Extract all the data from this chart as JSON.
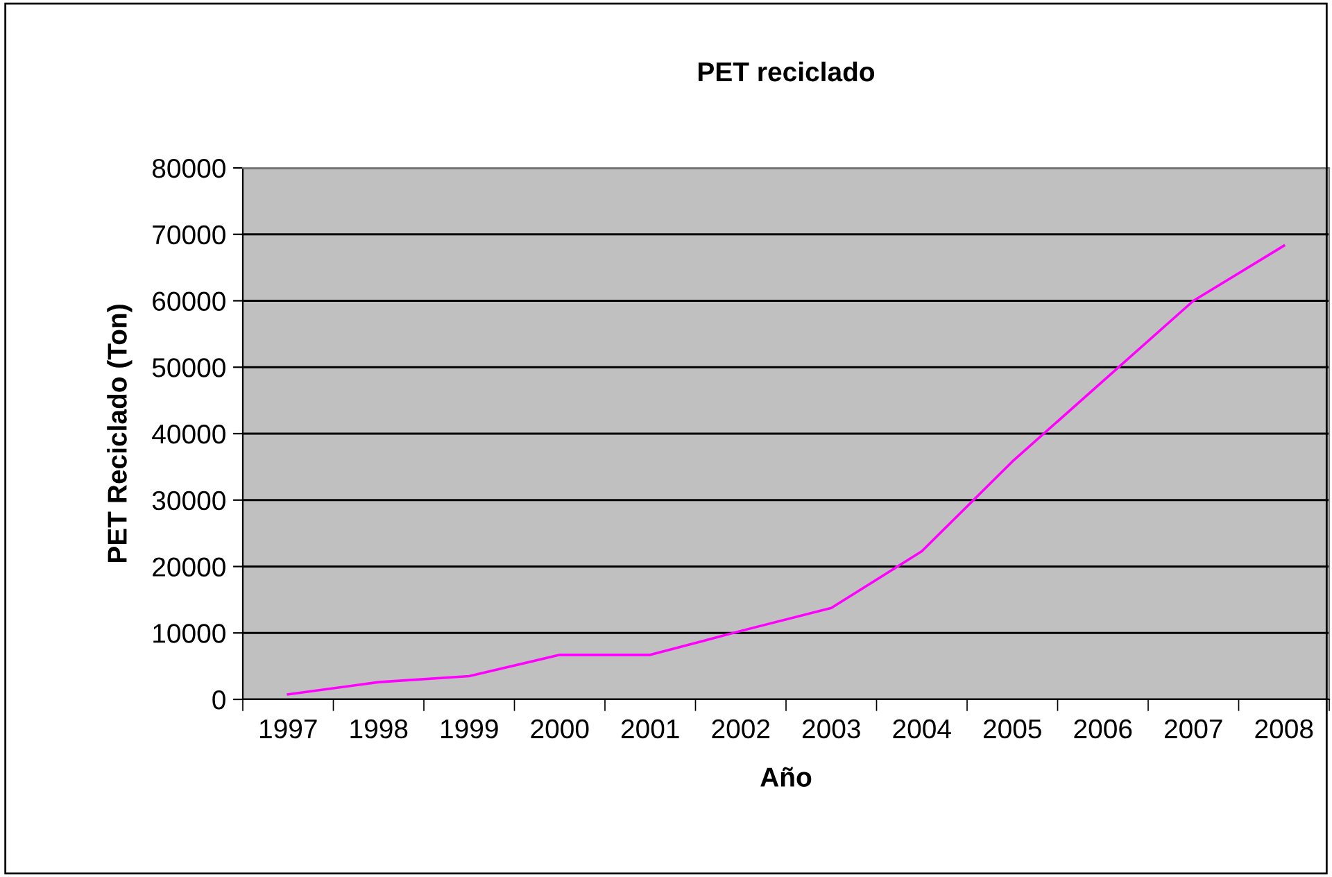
{
  "chart_data": {
    "type": "line",
    "title": "PET reciclado",
    "xlabel": "Año",
    "ylabel": "PET Reciclado (Ton)",
    "categories": [
      "1997",
      "1998",
      "1999",
      "2000",
      "2001",
      "2002",
      "2003",
      "2004",
      "2005",
      "2006",
      "2007",
      "2008"
    ],
    "series": [
      {
        "color": "#ff00ff",
        "values": [
          750,
          2600,
          3500,
          6700,
          6700,
          10300,
          13750,
          22300,
          35800,
          47900,
          60000,
          68300
        ]
      }
    ],
    "ylim": [
      0,
      80000
    ],
    "yticks": [
      0,
      10000,
      20000,
      30000,
      40000,
      50000,
      60000,
      70000,
      80000
    ],
    "grid": "y",
    "legend": false,
    "marker": "none",
    "line_style": "solid"
  }
}
